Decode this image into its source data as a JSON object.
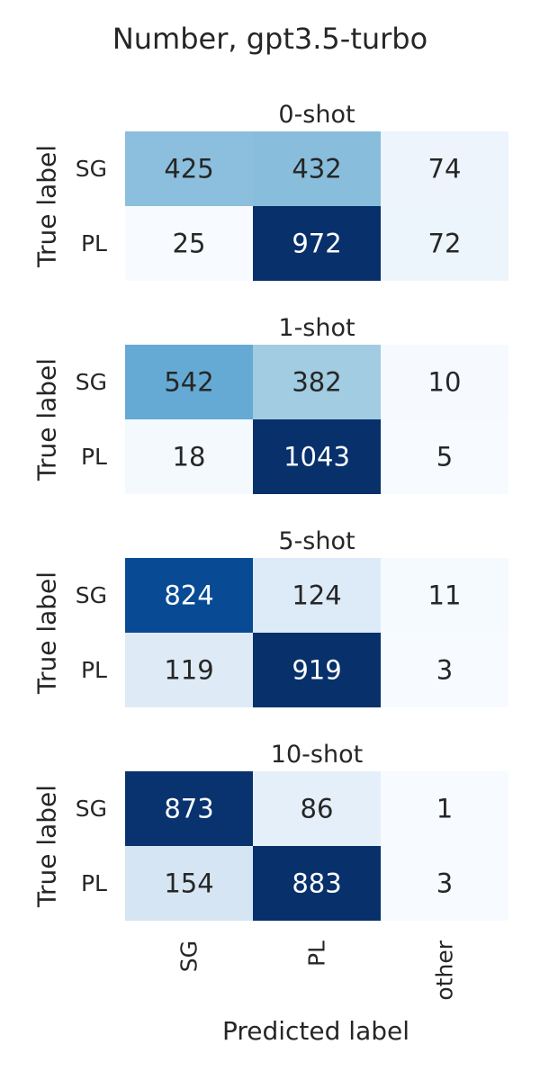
{
  "chart_data": {
    "type": "heatmap",
    "title": "Number, gpt3.5-turbo",
    "xlabel": "Predicted label",
    "ylabel": "True label",
    "x_categories": [
      "SG",
      "PL",
      "other"
    ],
    "y_categories": [
      "SG",
      "PL"
    ],
    "colormap": "Blues",
    "panels": [
      {
        "title": "0-shot",
        "values": [
          [
            425,
            432,
            74
          ],
          [
            25,
            972,
            72
          ]
        ]
      },
      {
        "title": "1-shot",
        "values": [
          [
            542,
            382,
            10
          ],
          [
            18,
            1043,
            5
          ]
        ]
      },
      {
        "title": "5-shot",
        "values": [
          [
            824,
            124,
            11
          ],
          [
            119,
            919,
            3
          ]
        ]
      },
      {
        "title": "10-shot",
        "values": [
          [
            873,
            86,
            1
          ],
          [
            154,
            883,
            3
          ]
        ]
      }
    ]
  }
}
